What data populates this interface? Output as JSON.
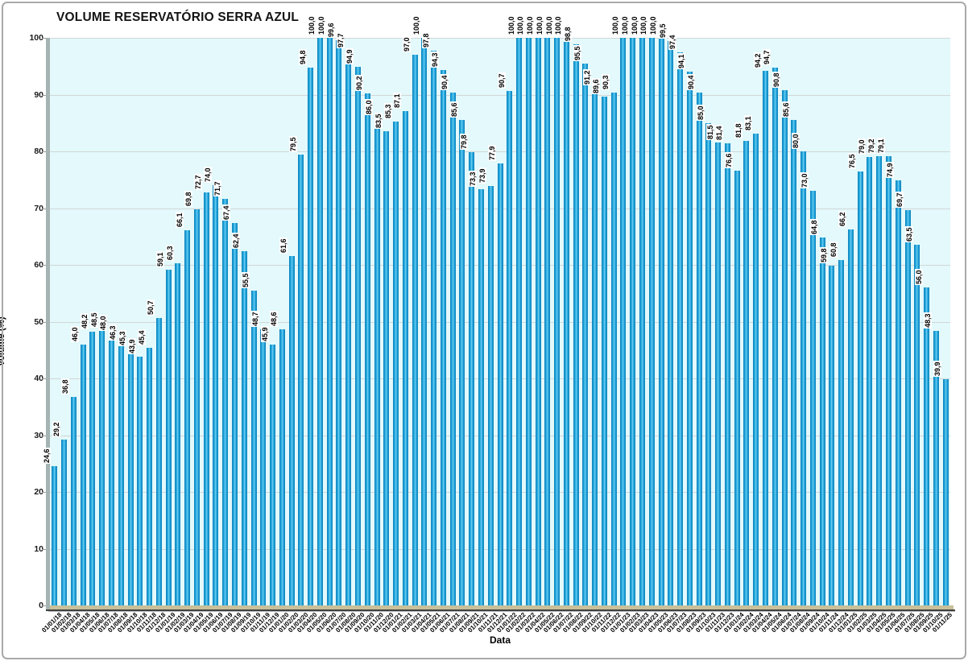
{
  "page": {
    "title": "VOLUME RESERVATÓRIO SERRA AZUL"
  },
  "chart_data": {
    "type": "bar",
    "title": "VOLUME RESERVATÓRIO SERRA AZUL",
    "xlabel": "Data",
    "ylabel": "Volume (%)",
    "ylim": [
      0,
      100
    ],
    "yticks": [
      0,
      10,
      20,
      30,
      40,
      50,
      60,
      70,
      80,
      90,
      100
    ],
    "grid": "horizontal",
    "legend_position": "none",
    "decimal_separator": ",",
    "colors": {
      "bar": "#1E9FD9",
      "plot_background": "#E3F9FC",
      "gridline": "#D2D6D6",
      "floor": "#C9BF99",
      "wall": "#A6B3B3"
    },
    "categories": [
      "01/01/18",
      "01/02/18",
      "01/03/18",
      "01/04/18",
      "01/05/18",
      "01/06/18",
      "01/07/18",
      "01/08/18",
      "01/09/18",
      "01/10/18",
      "01/11/18",
      "01/12/18",
      "01/01/19",
      "01/02/19",
      "01/03/19",
      "01/04/19",
      "01/05/19",
      "01/06/19",
      "01/07/19",
      "01/08/19",
      "01/09/19",
      "01/10/19",
      "01/11/19",
      "01/12/19",
      "01/01/20",
      "01/02/20",
      "01/03/20",
      "01/04/20",
      "01/05/20",
      "01/06/20",
      "01/07/20",
      "01/08/20",
      "01/09/20",
      "01/10/20",
      "01/11/20",
      "01/12/20",
      "01/01/21",
      "01/02/21",
      "01/03/21",
      "01/04/21",
      "01/05/21",
      "01/06/21",
      "01/07/21",
      "01/08/21",
      "01/09/21",
      "01/10/21",
      "01/11/21",
      "01/12/21",
      "01/01/22",
      "01/02/22",
      "01/03/22",
      "01/04/22",
      "01/05/22",
      "01/06/22",
      "01/07/22",
      "01/08/22",
      "01/09/22",
      "01/10/22",
      "01/11/22",
      "01/12/22",
      "01/01/23",
      "01/02/23",
      "01/03/23",
      "01/04/23",
      "01/05/23",
      "01/06/23",
      "01/07/23",
      "01/08/23",
      "01/09/23",
      "01/10/23",
      "01/11/23",
      "01/12/23",
      "01/01/24",
      "01/02/24",
      "01/03/24",
      "01/04/24",
      "01/05/24",
      "01/06/24",
      "01/07/24",
      "01/08/24",
      "01/09/24",
      "01/10/24",
      "01/11/24",
      "01/12/24",
      "01/01/25",
      "01/02/25",
      "01/03/25",
      "01/04/25",
      "01/05/25",
      "01/06/25",
      "01/07/25",
      "01/08/25",
      "01/09/25",
      "01/10/25",
      "01/11/25"
    ],
    "values": [
      24.6,
      29.2,
      36.8,
      46.0,
      48.2,
      48.5,
      48.0,
      46.3,
      45.3,
      43.9,
      45.4,
      50.7,
      59.1,
      60.3,
      66.1,
      69.8,
      72.7,
      74.0,
      71.7,
      67.4,
      62.4,
      55.5,
      48.7,
      45.9,
      48.6,
      61.6,
      79.5,
      94.8,
      100.0,
      100.0,
      99.6,
      97.7,
      94.9,
      90.2,
      86.0,
      83.5,
      85.3,
      87.1,
      97.0,
      100.0,
      97.8,
      94.3,
      90.4,
      85.6,
      79.8,
      73.3,
      73.9,
      77.9,
      90.7,
      100.0,
      100.0,
      100.0,
      100.0,
      100.0,
      100.0,
      98.8,
      95.5,
      91.2,
      89.6,
      90.3,
      100.0,
      100.0,
      100.0,
      100.0,
      100.0,
      99.5,
      97.4,
      94.1,
      90.4,
      85.0,
      81.5,
      81.4,
      76.6,
      81.8,
      83.1,
      94.2,
      94.7,
      90.8,
      85.6,
      80.0,
      73.0,
      64.8,
      59.8,
      60.8,
      66.2,
      76.5,
      79.0,
      79.2,
      79.1,
      74.9,
      69.7,
      63.5,
      56.0,
      48.3,
      39.9
    ]
  }
}
